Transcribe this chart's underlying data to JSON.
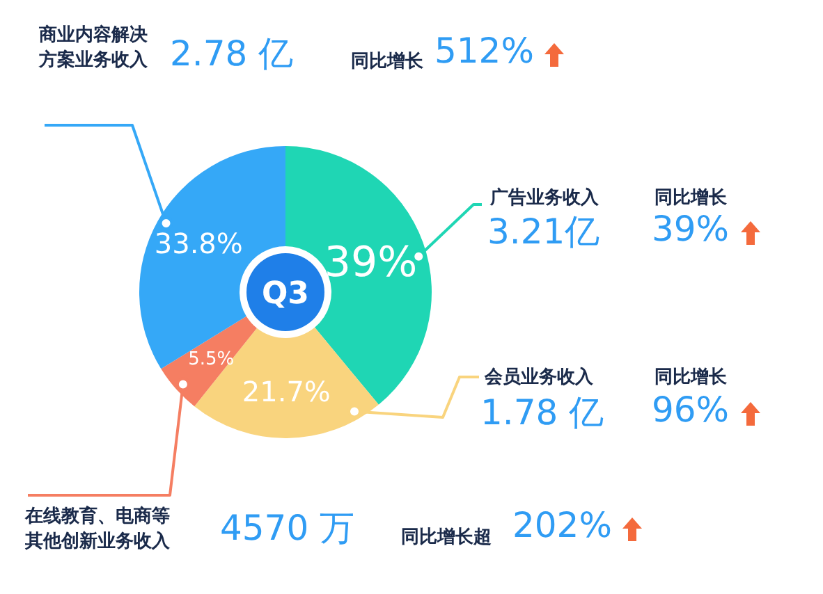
{
  "chart_data": {
    "type": "donut",
    "title": "Q3",
    "categories": [
      "广告业务收入",
      "会员业务收入",
      "在线教育、电商等其他创新业务收入",
      "商业内容解决方案业务收入"
    ],
    "values": [
      39,
      21.7,
      5.5,
      33.8
    ],
    "colors": [
      "#1fd6b4",
      "#f9d47e",
      "#f57e62",
      "#35a8f7"
    ],
    "value_labels": [
      "39%",
      "21.7%",
      "5.5%",
      "33.8%"
    ],
    "annotations": [
      "3.21亿",
      "同比增长",
      "39%",
      "1.78 亿",
      "同比增长",
      "96%",
      "4570 万",
      "同比增长超",
      "202%",
      "2.78 亿",
      "同比增长",
      "512%"
    ]
  }
}
